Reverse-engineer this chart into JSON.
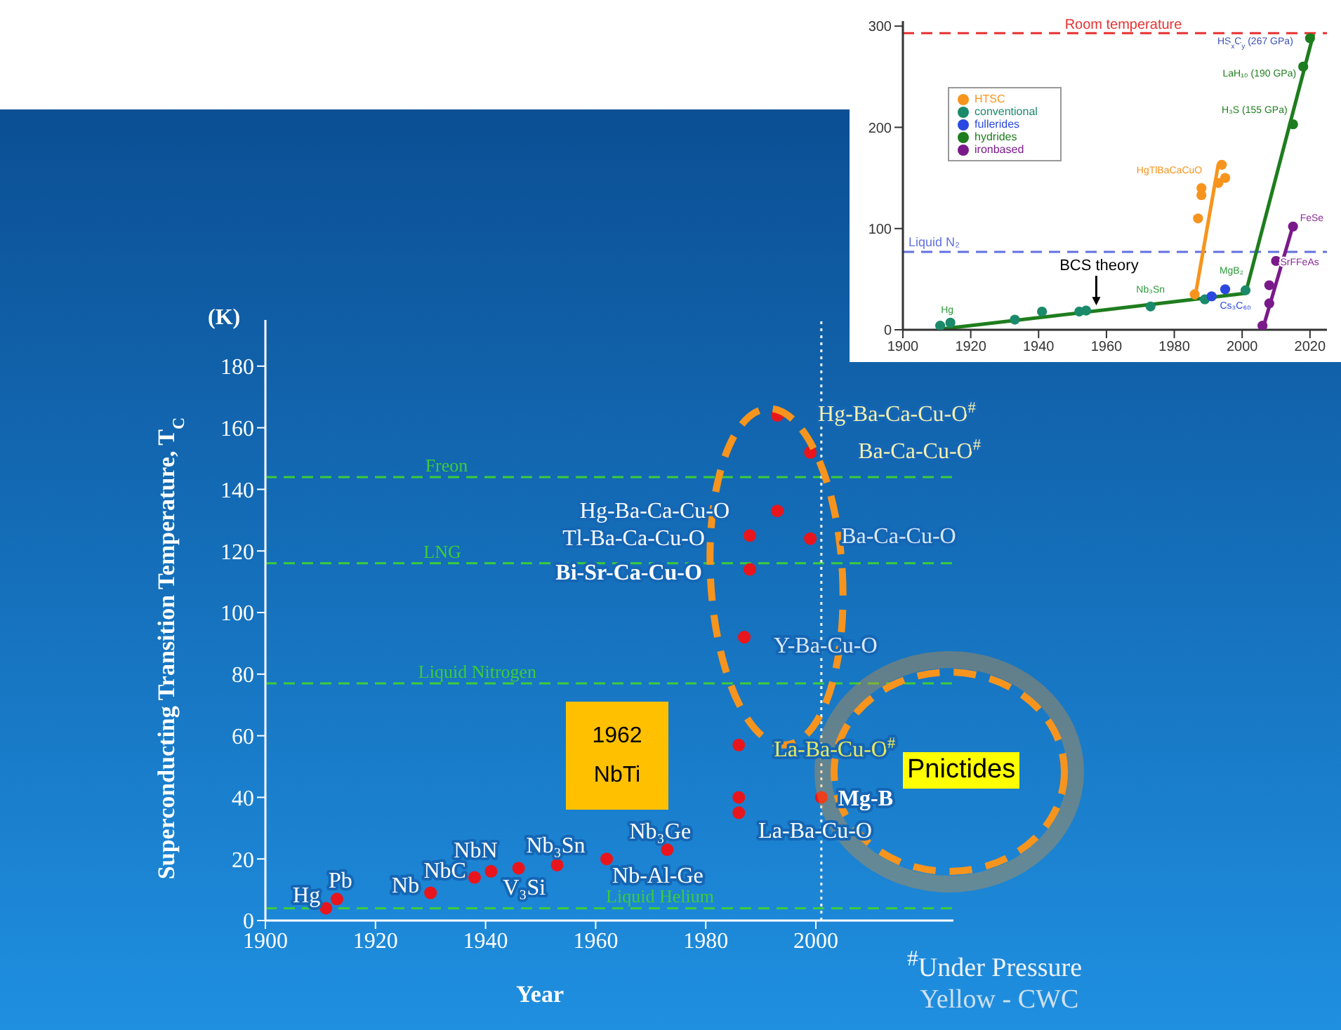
{
  "chart_data": [
    {
      "type": "scatter",
      "xlabel": "Year",
      "ylabel": "Superconducting Transition Temperature, T$_{C}$",
      "color": "#e8161c",
      "marker": "circle",
      "x": [
        1911,
        1913,
        1930,
        1938,
        1941,
        1946,
        1953,
        1962,
        1973,
        1986,
        1986,
        1986,
        1987,
        1988,
        1988,
        1993,
        1993,
        1999,
        1999,
        2001
      ],
      "values": [
        4,
        7,
        9,
        14,
        16,
        17,
        18,
        20,
        23,
        35,
        40,
        57,
        92,
        114,
        125,
        133,
        164,
        124,
        152,
        40
      ],
      "xlim": [
        1900,
        2025
      ],
      "xticks": [
        1900,
        1920,
        1940,
        1960,
        1980,
        2000
      ],
      "ylim": [
        0,
        195
      ],
      "yticks": [
        0,
        20,
        40,
        60,
        80,
        100,
        120,
        140,
        160,
        180
      ],
      "ref_lines": [
        {
          "axis": "y",
          "value": 144,
          "label": "Freon",
          "color": "#3ccc3c",
          "line_style": "dashed"
        },
        {
          "axis": "y",
          "value": 116,
          "label": "LNG",
          "color": "#3ccc3c",
          "line_style": "dashed"
        },
        {
          "axis": "y",
          "value": 77,
          "label": "Liquid Nitrogen",
          "color": "#3ccc3c",
          "line_style": "dashed"
        },
        {
          "axis": "y",
          "value": 4,
          "label": "Liquid Helium",
          "color": "#3ccc3c",
          "line_style": "dashed"
        },
        {
          "axis": "x",
          "value": 2001,
          "color": "#ffffff",
          "line_style": "dotted"
        }
      ],
      "annotations": [
        "(K)",
        {
          "text": "Hg",
          "x": 1911,
          "y": 4
        },
        {
          "text": "Pb",
          "x": 1913,
          "y": 7
        },
        {
          "text": "Nb",
          "x": 1930,
          "y": 9
        },
        {
          "text": "NbC",
          "x": 1938,
          "y": 14
        },
        {
          "text": "NbN",
          "x": 1941,
          "y": 16
        },
        {
          "text": "V₃Si",
          "x": 1946,
          "y": 17
        },
        {
          "text": "Nb₃Sn",
          "x": 1953,
          "y": 18
        },
        {
          "text": "Nb-Al-Ge",
          "x": 1962,
          "y": 20
        },
        {
          "text": "Nb₃Ge",
          "x": 1973,
          "y": 23
        },
        {
          "text": "Hg-Ba-Ca-Cu-O$^{#}$",
          "x": 1993,
          "y": 164
        },
        {
          "text": "Ba-Ca-Cu-O$^{#}$",
          "x": 1999,
          "y": 152
        },
        {
          "text": "Hg-Ba-Ca-Cu-O",
          "x": 1993,
          "y": 133
        },
        {
          "text": "Tl-Ba-Ca-Cu-O",
          "x": 1988,
          "y": 125
        },
        {
          "text": "Ba-Ca-Cu-O",
          "x": 1999,
          "y": 124
        },
        {
          "text": "Bi-Sr-Ca-Cu-O",
          "x": 1988,
          "y": 114
        },
        {
          "text": "Y-Ba-Cu-O",
          "x": 1987,
          "y": 92
        },
        {
          "text": "La-Ba-Cu-O$^{#}$",
          "x": 1986,
          "y": 57
        },
        {
          "text": "La-Ba-Cu-O",
          "x": 1986,
          "y": 35
        },
        {
          "text": "Mg-B",
          "x": 2001,
          "y": 40
        },
        "1962 NbTi",
        "Pnictides",
        "$^{#}$Under Pressure",
        "Yellow - CWC"
      ]
    },
    {
      "type": "scatter",
      "marker": "circle",
      "legend": "top left",
      "xlim": [
        1900,
        2025
      ],
      "xticks": [
        1900,
        1920,
        1940,
        1960,
        1980,
        2000,
        2020
      ],
      "ylim": [
        0,
        305
      ],
      "yticks": [
        0,
        100,
        200,
        300
      ],
      "series": [
        {
          "name": "conventional",
          "color": "#1a8a6a",
          "x": [
            1911,
            1914,
            1933,
            1941,
            1952,
            1954,
            1973,
            1989,
            2001
          ],
          "values": [
            4,
            7,
            10,
            18,
            18,
            19,
            23,
            30,
            39
          ]
        },
        {
          "name": "fullerides",
          "color": "#2a48e0",
          "x": [
            1991,
            1995
          ],
          "values": [
            33,
            40
          ]
        },
        {
          "name": "ironbased",
          "color": "#7a1a8a",
          "x": [
            2006,
            2008,
            2008,
            2010,
            2015
          ],
          "values": [
            4,
            26,
            44,
            68,
            102
          ]
        },
        {
          "name": "hydrides",
          "color": "#1e7d1e",
          "x": [
            2015,
            2018,
            2020
          ],
          "values": [
            203,
            260,
            288
          ]
        },
        {
          "name": "HTSC",
          "color": "#f7941d",
          "x": [
            1986,
            1987,
            1988,
            1988,
            1993,
            1994,
            1995
          ],
          "values": [
            35,
            110,
            133,
            140,
            145,
            163,
            150
          ]
        },
        {
          "type": "line",
          "marker": "none",
          "color": "#1e7d1e",
          "x": [
            1912,
            2001,
            2021
          ],
          "values": [
            1,
            36,
            292
          ]
        },
        {
          "type": "line",
          "marker": "none",
          "color": "#f7941d",
          "x": [
            1986,
            1993
          ],
          "values": [
            30,
            164
          ]
        },
        {
          "type": "line",
          "marker": "none",
          "color": "#7a1a8a",
          "x": [
            2006,
            2015
          ],
          "values": [
            0,
            103
          ]
        }
      ],
      "ref_lines": [
        {
          "axis": "y",
          "value": 293,
          "label": "Room temperature",
          "color": "#e83030",
          "line_style": "dashed"
        },
        {
          "axis": "y",
          "value": 77,
          "label": "Liquid N₂",
          "color": "#6070e0",
          "line_style": "dashed"
        }
      ],
      "annotations": [
        {
          "text": "Hg",
          "x": 1911,
          "y": 4
        },
        {
          "text": "Nb₃Sn",
          "x": 1973,
          "y": 23
        },
        {
          "text": "MgB₂",
          "x": 2001,
          "y": 39
        },
        {
          "text": "Cs₃C₆₀",
          "x": 1991,
          "y": 33
        },
        {
          "text": "HgTlBaCaCuO",
          "x": 1994,
          "y": 163
        },
        {
          "text": "FeSe",
          "x": 2015,
          "y": 102
        },
        {
          "text": "SrFFeAs",
          "x": 2010,
          "y": 68
        },
        {
          "text": "H₃S (155 GPa)",
          "x": 2015,
          "y": 203
        },
        {
          "text": "LaH₁₀ (190 GPa)",
          "x": 2018,
          "y": 260
        },
        {
          "text": "HS$_{x}$C$_{y}$ (267 GPa)",
          "x": 2020,
          "y": 288
        },
        {
          "text": "BCS theory",
          "x": 1957,
          "y": 20
        }
      ]
    }
  ]
}
